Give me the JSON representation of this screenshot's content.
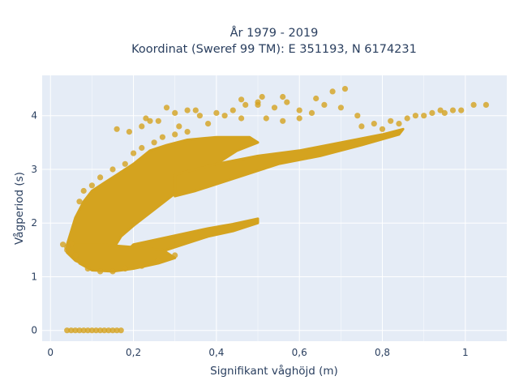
{
  "chart_data": {
    "type": "scatter",
    "title_lines": [
      "År 1979 - 2019",
      "Koordinat (Sweref 99 TM): E 351193, N 6174231"
    ],
    "xlabel": "Signifikant våghöjd (m)",
    "ylabel": "Vågperiod (s)",
    "xlim": [
      -0.02,
      1.1
    ],
    "ylim": [
      -0.2,
      4.75
    ],
    "xticks": [
      0,
      0.2,
      0.4,
      0.6,
      0.8,
      1
    ],
    "xtick_labels": [
      "0",
      "0,2",
      "0,4",
      "0,6",
      "0,8",
      "1"
    ],
    "yticks": [
      0,
      1,
      2,
      3,
      4
    ],
    "ytick_labels": [
      "0",
      "1",
      "2",
      "3",
      "4"
    ],
    "grid": true,
    "legend": "none",
    "marker_color": "#d4a31f",
    "background_color": "#e5ecf6",
    "points": [
      [
        0.04,
        0.0
      ],
      [
        0.05,
        0.0
      ],
      [
        0.06,
        0.0
      ],
      [
        0.07,
        0.0
      ],
      [
        0.08,
        0.0
      ],
      [
        0.09,
        0.0
      ],
      [
        0.1,
        0.0
      ],
      [
        0.11,
        0.0
      ],
      [
        0.12,
        0.0
      ],
      [
        0.13,
        0.0
      ],
      [
        0.14,
        0.0
      ],
      [
        0.15,
        0.0
      ],
      [
        0.16,
        0.0
      ],
      [
        0.17,
        0.0
      ],
      [
        0.03,
        1.6
      ],
      [
        0.04,
        1.55
      ],
      [
        0.04,
        1.5
      ],
      [
        0.05,
        1.62
      ],
      [
        0.05,
        1.45
      ],
      [
        0.06,
        1.4
      ],
      [
        0.09,
        1.15
      ],
      [
        0.12,
        1.1
      ],
      [
        0.15,
        1.1
      ],
      [
        0.18,
        1.15
      ],
      [
        0.22,
        1.2
      ],
      [
        0.26,
        1.3
      ],
      [
        0.3,
        1.4
      ],
      [
        0.07,
        2.4
      ],
      [
        0.08,
        2.6
      ],
      [
        0.1,
        2.7
      ],
      [
        0.12,
        2.85
      ],
      [
        0.15,
        3.0
      ],
      [
        0.18,
        3.1
      ],
      [
        0.2,
        3.3
      ],
      [
        0.22,
        3.4
      ],
      [
        0.25,
        3.5
      ],
      [
        0.27,
        3.6
      ],
      [
        0.3,
        3.65
      ],
      [
        0.33,
        3.7
      ],
      [
        0.16,
        3.75
      ],
      [
        0.19,
        3.7
      ],
      [
        0.22,
        3.8
      ],
      [
        0.24,
        3.9
      ],
      [
        0.3,
        4.05
      ],
      [
        0.33,
        4.1
      ],
      [
        0.36,
        4.0
      ],
      [
        0.4,
        4.05
      ],
      [
        0.44,
        4.1
      ],
      [
        0.47,
        4.2
      ],
      [
        0.5,
        4.25
      ],
      [
        0.54,
        4.15
      ],
      [
        0.57,
        4.25
      ],
      [
        0.6,
        4.1
      ],
      [
        0.63,
        4.05
      ],
      [
        0.66,
        4.2
      ],
      [
        0.7,
        4.15
      ],
      [
        0.74,
        4.0
      ],
      [
        0.23,
        3.95
      ],
      [
        0.26,
        3.9
      ],
      [
        0.28,
        4.15
      ],
      [
        0.31,
        3.8
      ],
      [
        0.35,
        4.1
      ],
      [
        0.38,
        3.85
      ],
      [
        0.42,
        4.0
      ],
      [
        0.46,
        3.95
      ],
      [
        0.52,
        3.95
      ],
      [
        0.56,
        3.9
      ],
      [
        0.6,
        3.95
      ],
      [
        0.46,
        4.3
      ],
      [
        0.5,
        4.2
      ],
      [
        0.51,
        4.35
      ],
      [
        0.56,
        4.35
      ],
      [
        0.64,
        4.32
      ],
      [
        0.68,
        4.45
      ],
      [
        0.71,
        4.5
      ],
      [
        0.75,
        3.8
      ],
      [
        0.78,
        3.85
      ],
      [
        0.8,
        3.75
      ],
      [
        0.82,
        3.9
      ],
      [
        0.84,
        3.85
      ],
      [
        0.86,
        3.95
      ],
      [
        0.88,
        4.0
      ],
      [
        0.9,
        4.0
      ],
      [
        0.92,
        4.05
      ],
      [
        0.94,
        4.1
      ],
      [
        0.95,
        4.05
      ],
      [
        0.97,
        4.1
      ],
      [
        0.99,
        4.1
      ],
      [
        1.02,
        4.2
      ],
      [
        1.05,
        4.2
      ]
    ]
  }
}
